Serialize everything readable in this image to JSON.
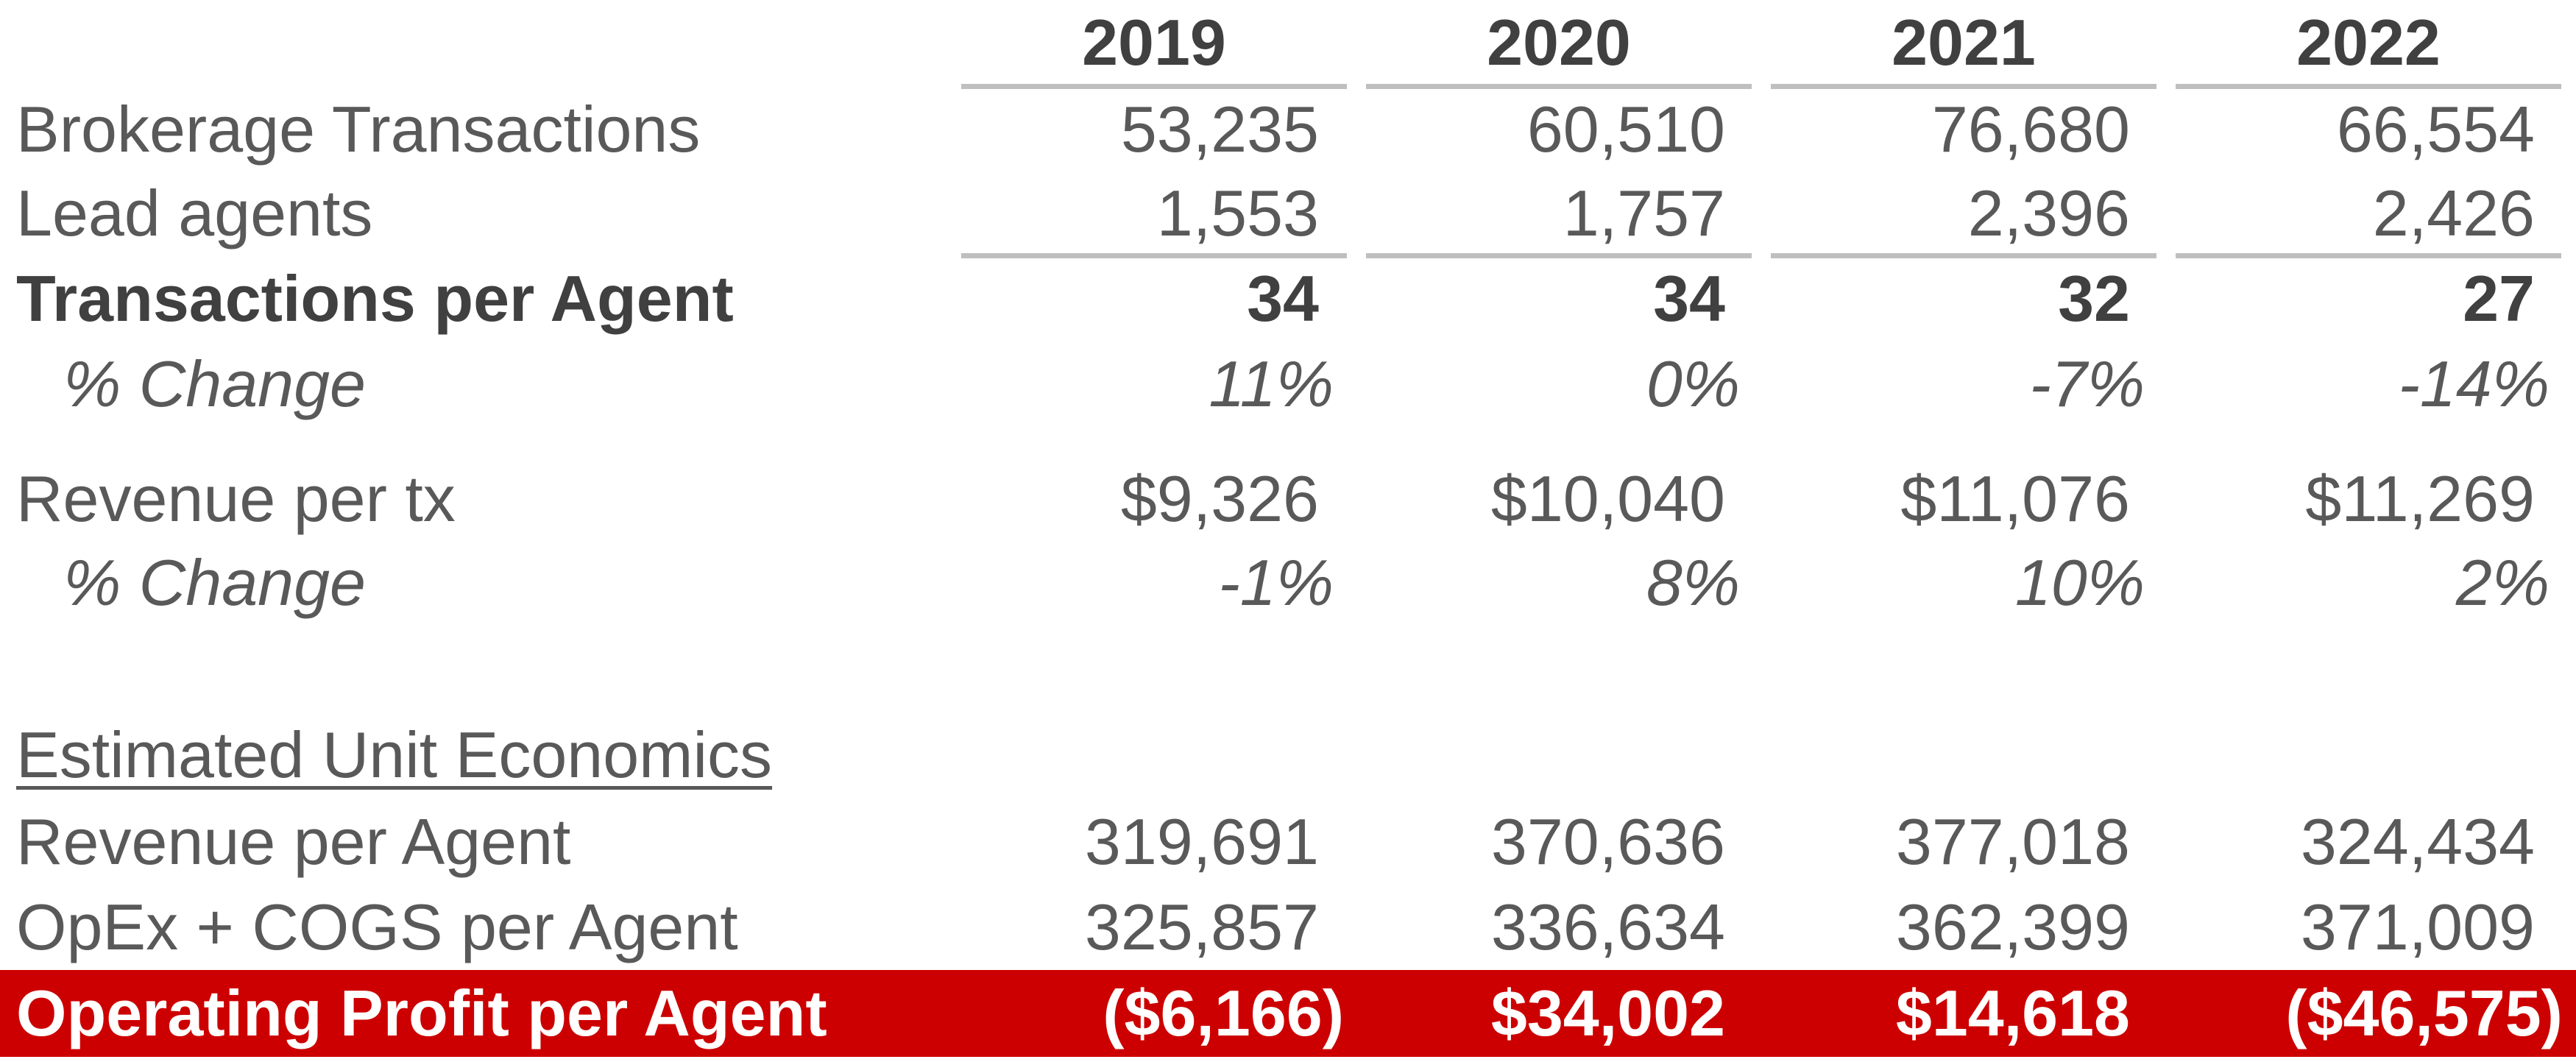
{
  "years": [
    "2019",
    "2020",
    "2021",
    "2022"
  ],
  "rows": {
    "brokerage_transactions": {
      "label": "Brokerage Transactions",
      "values": [
        "53,235",
        "60,510",
        "76,680",
        "66,554"
      ]
    },
    "lead_agents": {
      "label": "Lead agents",
      "values": [
        "1,553",
        "1,757",
        "2,396",
        "2,426"
      ]
    },
    "transactions_per_agent": {
      "label": "Transactions per Agent",
      "values": [
        "34",
        "34",
        "32",
        "27"
      ]
    },
    "tpa_change": {
      "label": "% Change",
      "values": [
        "11%",
        "0%",
        "-7%",
        "-14%"
      ]
    },
    "revenue_per_tx": {
      "label": "Revenue per tx",
      "values": [
        "$9,326",
        "$10,040",
        "$11,076",
        "$11,269"
      ]
    },
    "rpt_change": {
      "label": "% Change",
      "values": [
        "-1%",
        "8%",
        "10%",
        "2%"
      ]
    },
    "section_heading": {
      "label": "Estimated Unit Economics"
    },
    "revenue_per_agent": {
      "label": "Revenue per Agent",
      "values": [
        "319,691",
        "370,636",
        "377,018",
        "324,434"
      ]
    },
    "opex_cogs_per_agent": {
      "label": "OpEx + COGS per Agent",
      "values": [
        "325,857",
        "336,634",
        "362,399",
        "371,009"
      ]
    },
    "operating_profit_per_agent": {
      "label": "Operating Profit per Agent",
      "values": [
        "($6,166)",
        "$34,002",
        "$14,618",
        "($46,575)"
      ]
    }
  },
  "colors": {
    "text": "#595959",
    "bold_text": "#404040",
    "rule": "#bfbfbf",
    "highlight_bar": "#cc0000",
    "highlight_text": "#ffffff"
  }
}
